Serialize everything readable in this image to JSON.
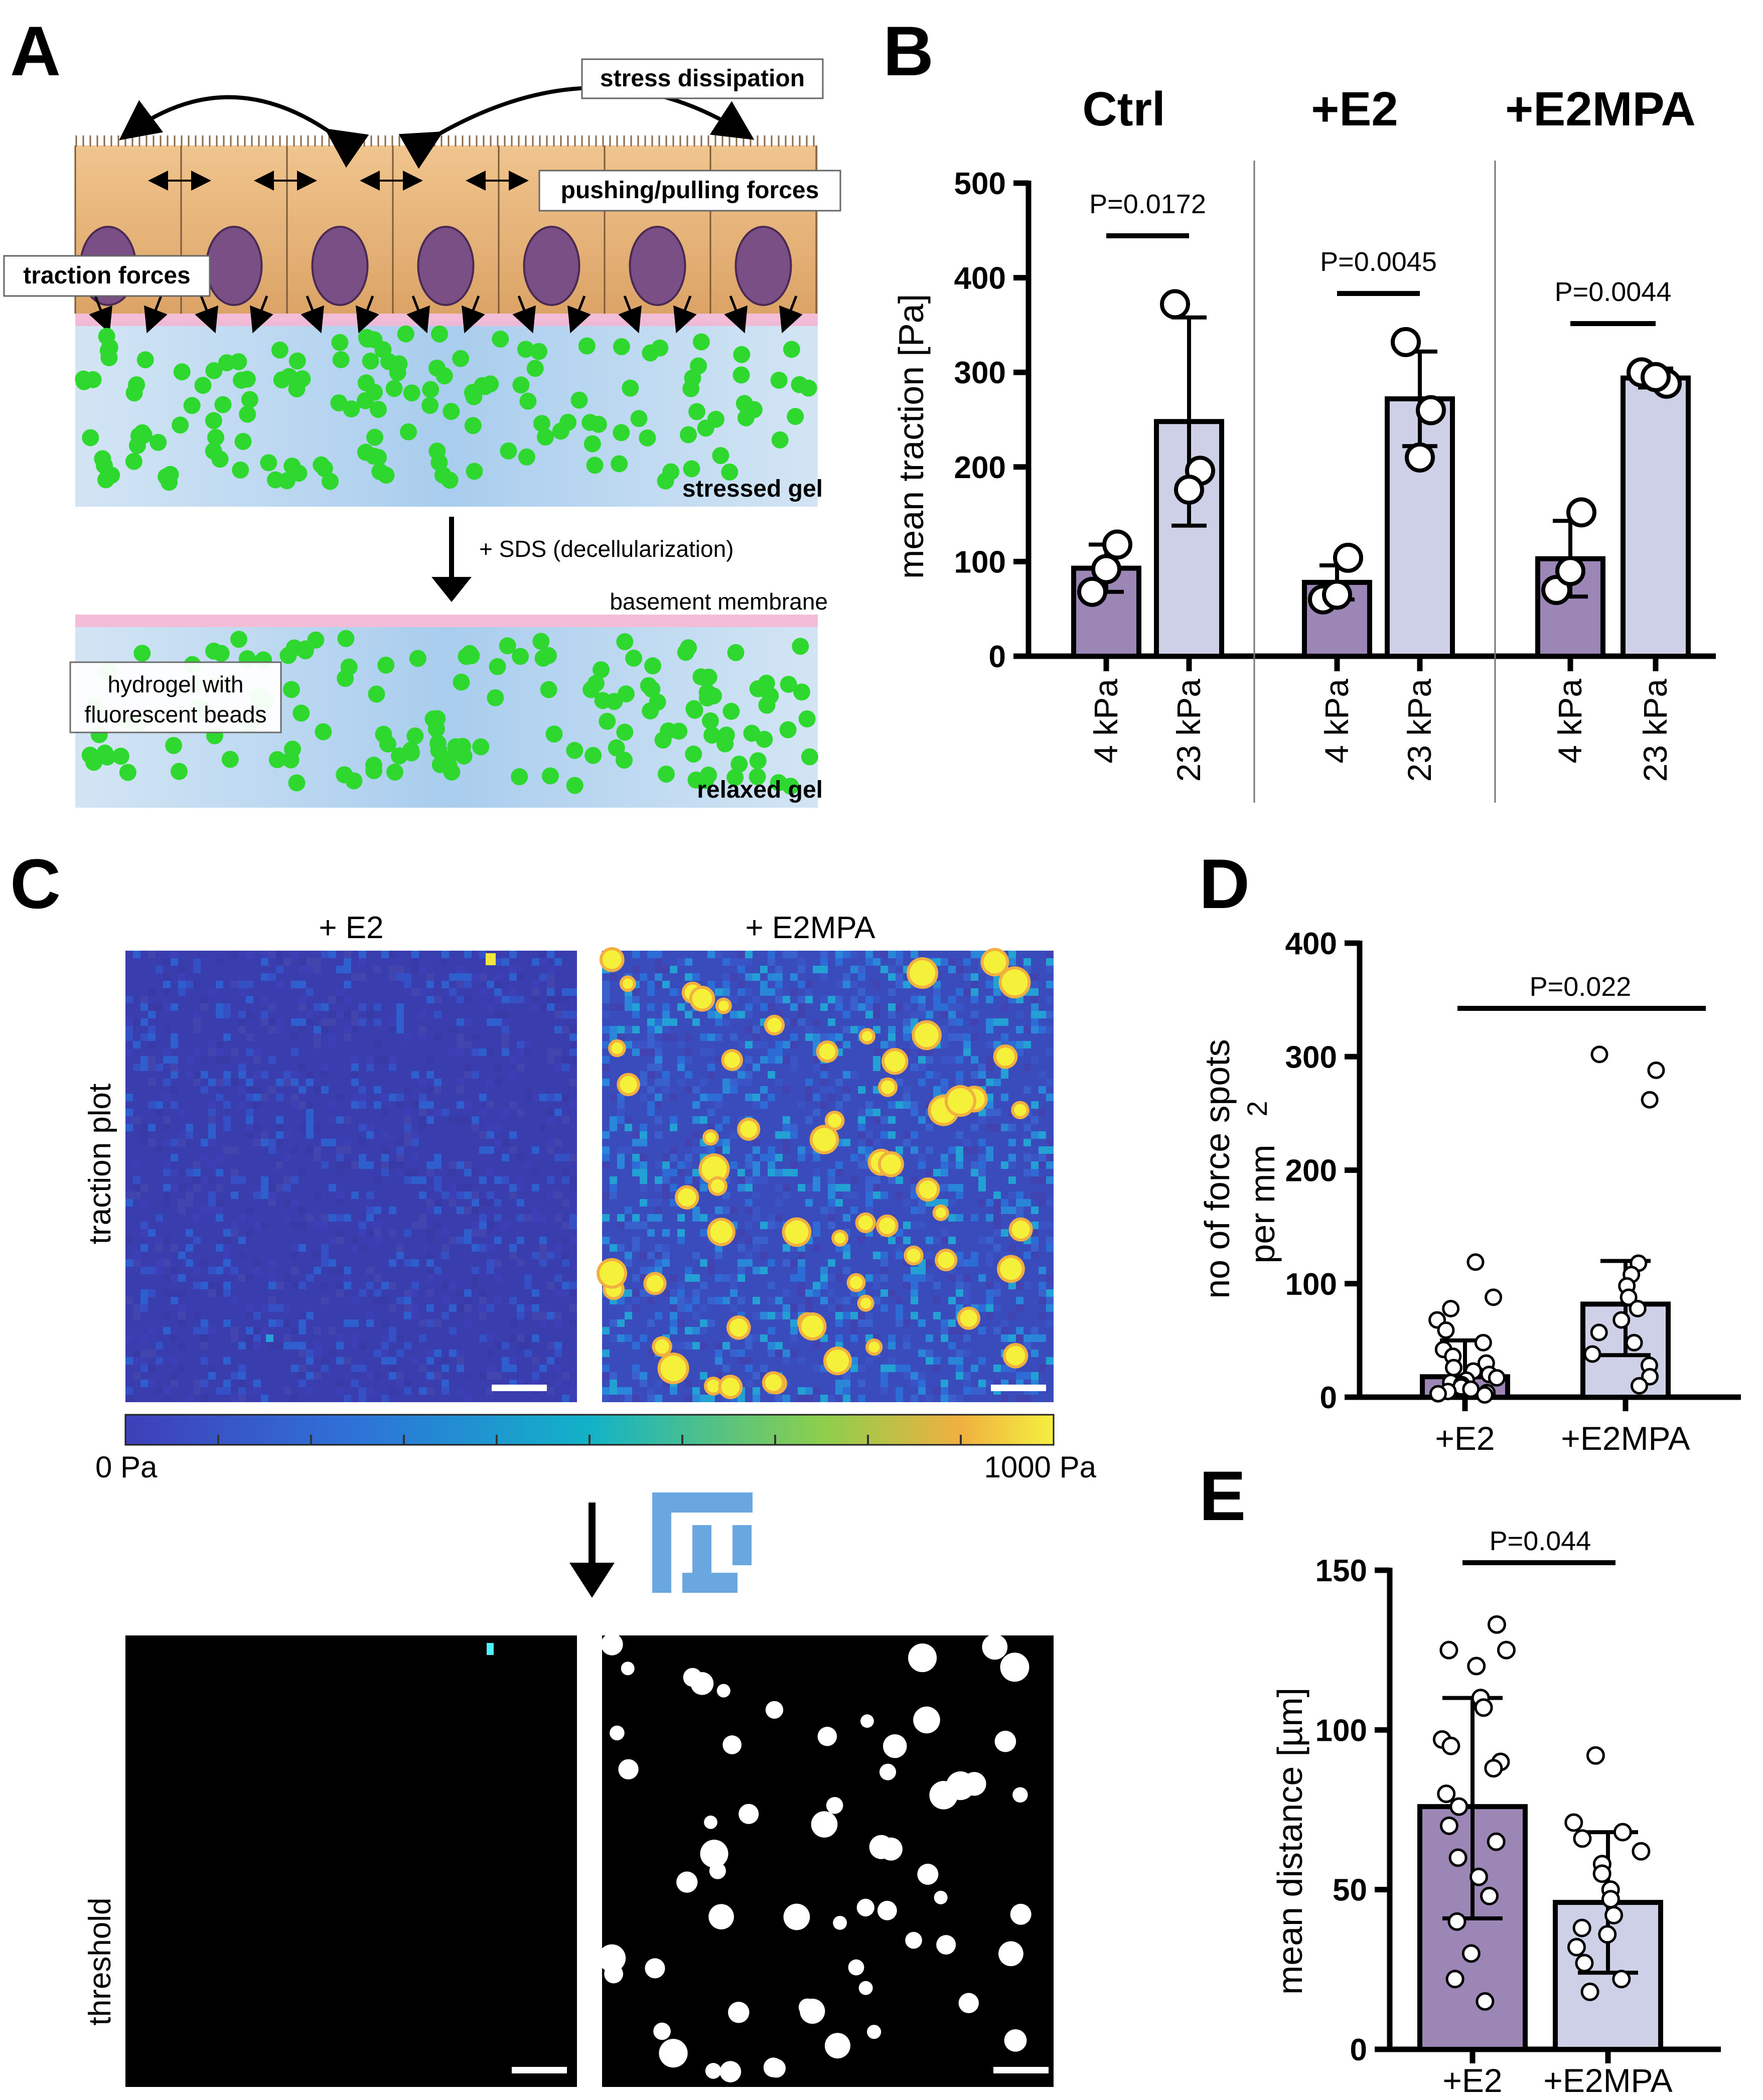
{
  "panels": {
    "A": "A",
    "B": "B",
    "C": "C",
    "D": "D",
    "E": "E"
  },
  "panelA": {
    "labels": {
      "stress_dissipation": "stress dissipation",
      "pushing_pulling": "pushing/pulling forces",
      "traction_forces": "traction forces",
      "stressed_gel": "stressed gel",
      "sds": "+ SDS (decellularization)",
      "basement_membrane": "basement membrane",
      "hydrogel_line1": "hydrogel with",
      "hydrogel_line2": "fluorescent beads",
      "relaxed_gel": "relaxed gel"
    },
    "colors": {
      "cell": "#e8b779",
      "nucleus": "#7a4f86",
      "gel": "#b9d6ef",
      "bead": "#2ed82e",
      "membrane": "#f3b6d3"
    }
  },
  "panelC": {
    "sub_titles": [
      "+ E2",
      "+ E2MPA"
    ],
    "row_labels": [
      "traction plot",
      "threshold"
    ],
    "colorbar_min": "0 Pa",
    "colorbar_max": "1000 Pa",
    "fiji_icon": "fiji-logo-icon"
  },
  "chart_data": [
    {
      "type": "bar",
      "panel": "B",
      "groups": [
        "Ctrl",
        "+E2",
        "+E2MPA"
      ],
      "categories": [
        "4 kPa",
        "23 kPa",
        "4 kPa",
        "23 kPa",
        "4 kPa",
        "23 kPa"
      ],
      "ylabel": "mean traction [Pa]",
      "ylim": [
        0,
        500
      ],
      "yticks": [
        "0",
        "100",
        "200",
        "300",
        "400",
        "500"
      ],
      "values": [
        93,
        248,
        78,
        272,
        103,
        294
      ],
      "sd": [
        25,
        110,
        18,
        50,
        40,
        10
      ],
      "points": [
        [
          68,
          118,
          92
        ],
        [
          372,
          196,
          176
        ],
        [
          60,
          104,
          65
        ],
        [
          332,
          260,
          210
        ],
        [
          70,
          152,
          90
        ],
        [
          300,
          288,
          295
        ]
      ],
      "bar_colors": [
        "#9b86b6",
        "#cdd0e6",
        "#9b86b6",
        "#cdd0e6",
        "#9b86b6",
        "#cdd0e6"
      ],
      "pvalues": [
        "P=0.0172",
        "P=0.0045",
        "P=0.0044"
      ]
    },
    {
      "type": "bar",
      "panel": "D",
      "categories": [
        "+E2",
        "+E2MPA"
      ],
      "ylabel": [
        "no of force spots",
        "per mm",
        "2"
      ],
      "ylim": [
        0,
        400
      ],
      "yticks": [
        "0",
        "100",
        "200",
        "300",
        "400"
      ],
      "values": [
        18,
        82
      ],
      "sd_low": [
        3,
        37
      ],
      "sd_high": [
        50,
        120
      ],
      "points": [
        [
          119,
          88,
          78,
          68,
          59,
          48,
          42,
          36,
          30,
          26,
          23,
          20,
          17,
          15,
          13,
          11,
          9,
          7,
          5,
          4,
          3,
          2
        ],
        [
          302,
          288,
          262,
          118,
          108,
          98,
          88,
          78,
          68,
          57,
          48,
          38,
          28,
          18,
          10
        ]
      ],
      "bar_colors": [
        "#9b86b6",
        "#cdd0e6"
      ],
      "pvalues": [
        "P=0.022"
      ]
    },
    {
      "type": "bar",
      "panel": "E",
      "categories": [
        "+E2",
        "+E2MPA"
      ],
      "ylabel": "mean distance [µm]",
      "ylim": [
        0,
        150
      ],
      "yticks": [
        "0",
        "50",
        "100",
        "150"
      ],
      "values": [
        76,
        46
      ],
      "sd_low": [
        41,
        24
      ],
      "sd_high": [
        110,
        68
      ],
      "points": [
        [
          133,
          125,
          125,
          120,
          110,
          107,
          97,
          95,
          90,
          88,
          80,
          76,
          70,
          65,
          60,
          54,
          48,
          40,
          30,
          22,
          15
        ],
        [
          92,
          71,
          68,
          66,
          62,
          58,
          55,
          50,
          47,
          42,
          38,
          36,
          32,
          27,
          22,
          18
        ]
      ],
      "bar_colors": [
        "#9b86b6",
        "#cdd0e6"
      ],
      "pvalues": [
        "P=0.044"
      ]
    }
  ]
}
